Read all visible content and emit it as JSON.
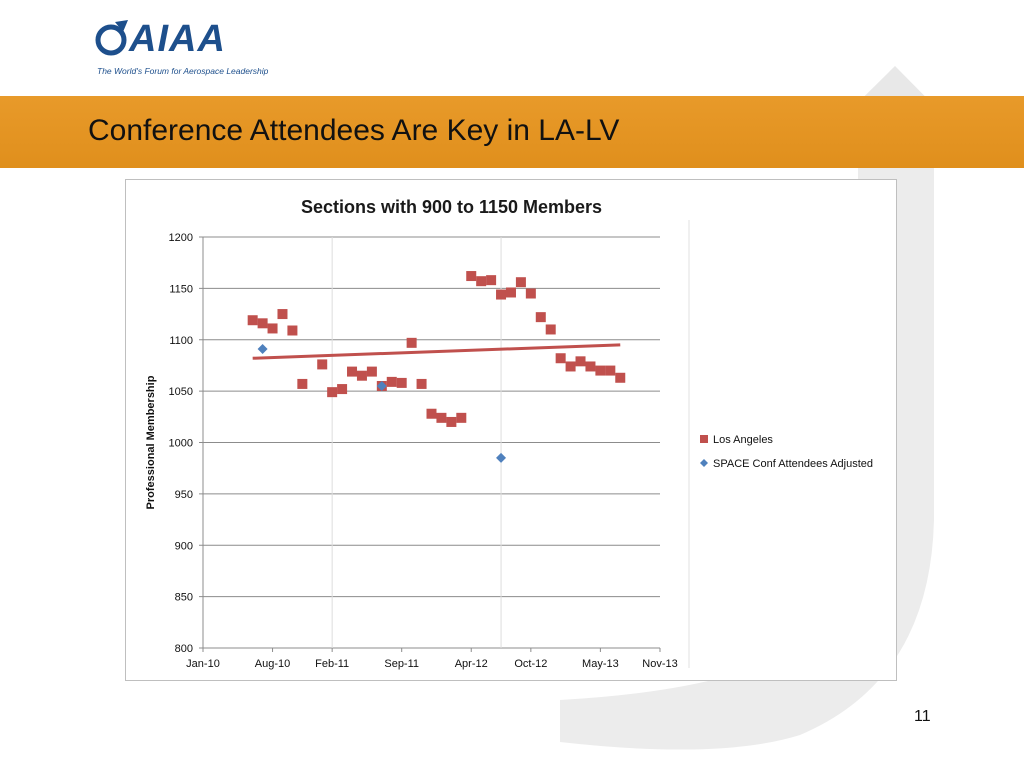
{
  "logo": {
    "text": "AIAA",
    "tagline": "The World's Forum for Aerospace Leadership",
    "icon": "aiaa-logo-mark"
  },
  "slide": {
    "title": "Conference Attendees Are Key in LA-LV",
    "page_number": "11"
  },
  "colors": {
    "band": "#e49524",
    "los_angeles": "#c0504d",
    "space_conf": "#4f81bd",
    "trendline": "#c0504d",
    "logo_blue": "#1d4f8c"
  },
  "chart_data": {
    "type": "scatter",
    "title": "Sections with 900 to 1150 Members",
    "ylabel": "Professional Membership",
    "xlabel": "",
    "x_axis": {
      "type": "date",
      "min": "2010-01",
      "max": "2013-11",
      "tick_labels": [
        "Jan-10",
        "Aug-10",
        "Feb-11",
        "Sep-11",
        "Apr-12",
        "Oct-12",
        "May-13",
        "Nov-13"
      ],
      "tick_dates": [
        "2010-01",
        "2010-08",
        "2011-02",
        "2011-09",
        "2012-04",
        "2012-10",
        "2013-05",
        "2013-11"
      ]
    },
    "y_axis": {
      "min": 800,
      "max": 1200,
      "step": 50,
      "tick_labels": [
        "800",
        "850",
        "900",
        "950",
        "1000",
        "1050",
        "1100",
        "1150",
        "1200"
      ]
    },
    "gridlines": "horizontal",
    "legend": {
      "position": "right",
      "entries": [
        "Los Angeles",
        "SPACE Conf Attendees Adjusted"
      ]
    },
    "series": [
      {
        "name": "Los Angeles",
        "marker": "square",
        "points": [
          {
            "x": "2010-06",
            "y": 1119
          },
          {
            "x": "2010-07",
            "y": 1116
          },
          {
            "x": "2010-08",
            "y": 1111
          },
          {
            "x": "2010-09",
            "y": 1125
          },
          {
            "x": "2010-10",
            "y": 1109
          },
          {
            "x": "2010-11",
            "y": 1057
          },
          {
            "x": "2011-01",
            "y": 1076
          },
          {
            "x": "2011-02",
            "y": 1049
          },
          {
            "x": "2011-03",
            "y": 1052
          },
          {
            "x": "2011-04",
            "y": 1069
          },
          {
            "x": "2011-05",
            "y": 1065
          },
          {
            "x": "2011-06",
            "y": 1069
          },
          {
            "x": "2011-07",
            "y": 1055
          },
          {
            "x": "2011-08",
            "y": 1059
          },
          {
            "x": "2011-09",
            "y": 1058
          },
          {
            "x": "2011-10",
            "y": 1097
          },
          {
            "x": "2011-11",
            "y": 1057
          },
          {
            "x": "2011-12",
            "y": 1028
          },
          {
            "x": "2012-01",
            "y": 1024
          },
          {
            "x": "2012-02",
            "y": 1020
          },
          {
            "x": "2012-03",
            "y": 1024
          },
          {
            "x": "2012-04",
            "y": 1162
          },
          {
            "x": "2012-05",
            "y": 1157
          },
          {
            "x": "2012-06",
            "y": 1158
          },
          {
            "x": "2012-07",
            "y": 1144
          },
          {
            "x": "2012-08",
            "y": 1146
          },
          {
            "x": "2012-09",
            "y": 1156
          },
          {
            "x": "2012-10",
            "y": 1145
          },
          {
            "x": "2012-11",
            "y": 1122
          },
          {
            "x": "2012-12",
            "y": 1110
          },
          {
            "x": "2013-01",
            "y": 1082
          },
          {
            "x": "2013-02",
            "y": 1074
          },
          {
            "x": "2013-03",
            "y": 1079
          },
          {
            "x": "2013-04",
            "y": 1074
          },
          {
            "x": "2013-05",
            "y": 1070
          },
          {
            "x": "2013-06",
            "y": 1070
          },
          {
            "x": "2013-07",
            "y": 1063
          }
        ],
        "trendline": {
          "type": "linear",
          "start": {
            "x": "2010-06",
            "y": 1082
          },
          "end": {
            "x": "2013-07",
            "y": 1095
          }
        }
      },
      {
        "name": "SPACE Conf Attendees Adjusted",
        "marker": "diamond",
        "points": [
          {
            "x": "2010-07",
            "y": 1091
          },
          {
            "x": "2011-07",
            "y": 1055
          },
          {
            "x": "2012-07",
            "y": 985
          }
        ]
      }
    ]
  }
}
